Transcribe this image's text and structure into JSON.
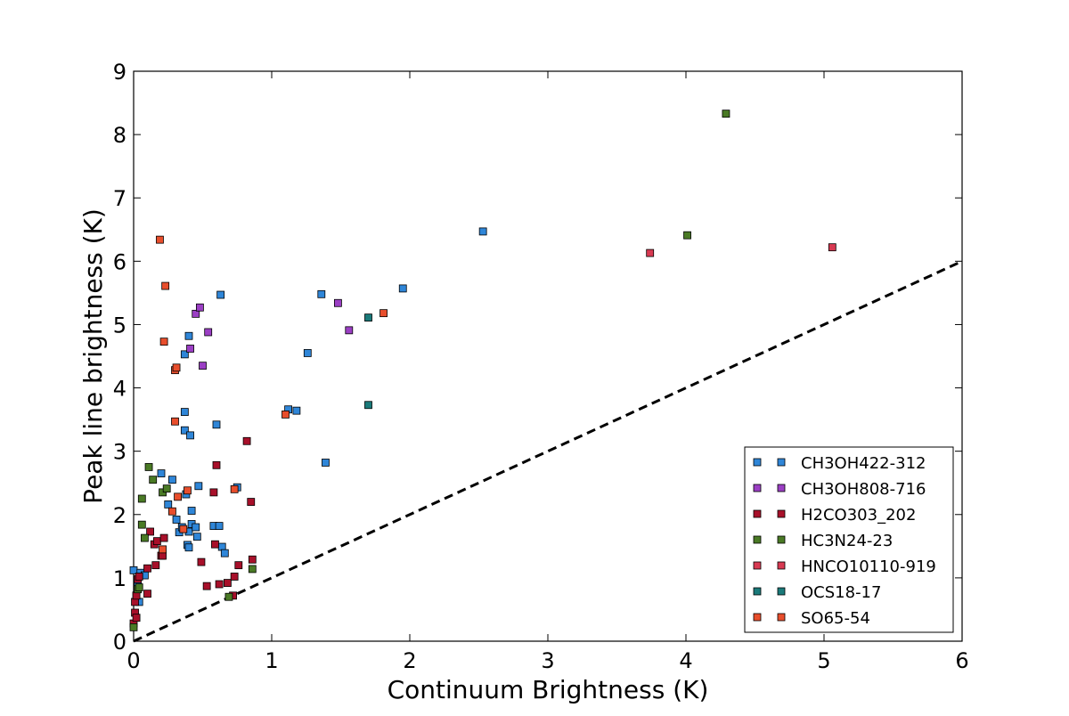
{
  "chart_data": {
    "type": "scatter",
    "title": "",
    "xlabel": "Continuum Brightness (K)",
    "ylabel": "Peak line brightness (K)",
    "xlim": [
      0,
      6
    ],
    "ylim": [
      0,
      9
    ],
    "xticks": [
      "0",
      "1",
      "2",
      "3",
      "4",
      "5",
      "6"
    ],
    "yticks": [
      "0",
      "1",
      "2",
      "3",
      "4",
      "5",
      "6",
      "7",
      "8",
      "9"
    ],
    "grid": false,
    "legend_position": "lower-right",
    "reference_line": {
      "style": "dashed",
      "color": "#000000",
      "points": [
        [
          0,
          0
        ],
        [
          6,
          6
        ]
      ]
    },
    "series": [
      {
        "name": "CH3OH422-312",
        "color": "#2f86d8",
        "points": [
          [
            0.0,
            1.12
          ],
          [
            0.02,
            0.72
          ],
          [
            0.04,
            0.62
          ],
          [
            0.03,
            0.92
          ],
          [
            0.05,
            1.08
          ],
          [
            0.08,
            1.04
          ],
          [
            0.2,
            2.65
          ],
          [
            0.25,
            2.16
          ],
          [
            0.28,
            2.55
          ],
          [
            0.31,
            1.92
          ],
          [
            0.33,
            1.72
          ],
          [
            0.35,
            1.8
          ],
          [
            0.37,
            3.62
          ],
          [
            0.37,
            3.33
          ],
          [
            0.37,
            4.53
          ],
          [
            0.38,
            2.32
          ],
          [
            0.39,
            1.52
          ],
          [
            0.4,
            1.48
          ],
          [
            0.4,
            1.73
          ],
          [
            0.4,
            4.82
          ],
          [
            0.41,
            3.25
          ],
          [
            0.42,
            2.06
          ],
          [
            0.42,
            1.85
          ],
          [
            0.45,
            1.8
          ],
          [
            0.46,
            1.65
          ],
          [
            0.47,
            2.45
          ],
          [
            0.58,
            1.82
          ],
          [
            0.6,
            3.42
          ],
          [
            0.62,
            1.82
          ],
          [
            0.63,
            5.47
          ],
          [
            0.64,
            1.49
          ],
          [
            0.66,
            1.39
          ],
          [
            0.75,
            2.43
          ],
          [
            1.12,
            3.66
          ],
          [
            1.18,
            3.64
          ],
          [
            1.26,
            4.55
          ],
          [
            1.36,
            5.48
          ],
          [
            1.39,
            2.82
          ],
          [
            1.95,
            5.57
          ],
          [
            2.53,
            6.47
          ]
        ]
      },
      {
        "name": "CH3OH808-716",
        "color": "#9b3fc4",
        "points": [
          [
            0.41,
            4.62
          ],
          [
            0.45,
            5.17
          ],
          [
            0.48,
            5.27
          ],
          [
            0.5,
            4.35
          ],
          [
            0.54,
            4.88
          ],
          [
            1.48,
            5.34
          ],
          [
            1.56,
            4.91
          ]
        ]
      },
      {
        "name": "H2CO303_202",
        "color": "#a8102a",
        "points": [
          [
            0.0,
            0.28
          ],
          [
            0.01,
            0.45
          ],
          [
            0.01,
            0.62
          ],
          [
            0.02,
            0.37
          ],
          [
            0.02,
            0.72
          ],
          [
            0.03,
            0.98
          ],
          [
            0.04,
            1.02
          ],
          [
            0.1,
            1.15
          ],
          [
            0.1,
            0.75
          ],
          [
            0.12,
            1.73
          ],
          [
            0.15,
            1.53
          ],
          [
            0.16,
            1.2
          ],
          [
            0.17,
            1.58
          ],
          [
            0.2,
            1.35
          ],
          [
            0.21,
            1.35
          ],
          [
            0.22,
            1.63
          ],
          [
            0.49,
            1.25
          ],
          [
            0.53,
            0.87
          ],
          [
            0.58,
            2.35
          ],
          [
            0.59,
            1.53
          ],
          [
            0.6,
            2.78
          ],
          [
            0.62,
            0.9
          ],
          [
            0.68,
            0.92
          ],
          [
            0.72,
            0.72
          ],
          [
            0.73,
            1.02
          ],
          [
            0.76,
            1.2
          ],
          [
            0.82,
            3.16
          ],
          [
            0.85,
            2.2
          ],
          [
            0.86,
            1.29
          ]
        ]
      },
      {
        "name": "HC3N24-23",
        "color": "#4a7a25",
        "points": [
          [
            0.0,
            0.22
          ],
          [
            0.03,
            0.82
          ],
          [
            0.04,
            0.85
          ],
          [
            0.06,
            2.25
          ],
          [
            0.06,
            1.84
          ],
          [
            0.08,
            1.63
          ],
          [
            0.11,
            2.75
          ],
          [
            0.14,
            2.55
          ],
          [
            0.21,
            2.35
          ],
          [
            0.24,
            2.41
          ],
          [
            0.69,
            0.7
          ],
          [
            0.86,
            1.14
          ],
          [
            4.01,
            6.41
          ],
          [
            4.29,
            8.33
          ]
        ]
      },
      {
        "name": "HNCO10110-919",
        "color": "#d83a52",
        "points": [
          [
            3.74,
            6.13
          ],
          [
            5.06,
            6.22
          ]
        ]
      },
      {
        "name": "OCS18-17",
        "color": "#1a7a7a",
        "points": [
          [
            1.7,
            5.11
          ],
          [
            1.7,
            3.73
          ]
        ]
      },
      {
        "name": "SO65-54",
        "color": "#e84e2c",
        "points": [
          [
            0.19,
            6.34
          ],
          [
            0.21,
            1.45
          ],
          [
            0.22,
            4.73
          ],
          [
            0.23,
            5.61
          ],
          [
            0.28,
            2.05
          ],
          [
            0.3,
            3.47
          ],
          [
            0.3,
            4.28
          ],
          [
            0.31,
            4.32
          ],
          [
            0.32,
            2.28
          ],
          [
            0.36,
            1.77
          ],
          [
            0.39,
            2.38
          ],
          [
            0.73,
            2.4
          ],
          [
            1.1,
            3.58
          ],
          [
            1.81,
            5.18
          ]
        ]
      }
    ]
  }
}
